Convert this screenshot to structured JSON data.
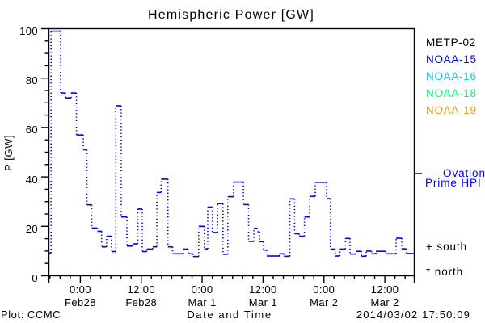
{
  "chart_data": {
    "type": "line",
    "subtype": "stepped-dotted",
    "title": "Hemispheric Power [GW]",
    "xlabel": "Date and Time",
    "ylabel": "P [GW]",
    "ylim": [
      0,
      100
    ],
    "yticks": [
      0,
      20,
      40,
      60,
      80,
      100
    ],
    "y_minor_step": 5,
    "x_hours_span": 72,
    "x_minor_step_h": 2,
    "xticks": [
      {
        "h": 6.2,
        "time": "0:00",
        "date": "Feb28"
      },
      {
        "h": 18.2,
        "time": "12:00",
        "date": "Feb28"
      },
      {
        "h": 30.2,
        "time": "0:00",
        "date": "Mar 1"
      },
      {
        "h": 42.2,
        "time": "12:00",
        "date": "Mar 1"
      },
      {
        "h": 54.2,
        "time": "0:00",
        "date": "Mar 2"
      },
      {
        "h": 66.2,
        "time": "12:00",
        "date": "Mar 2"
      }
    ],
    "series": [
      {
        "name": "Ovation Prime HPI",
        "color": "#0000ee",
        "steps_h_gw": [
          [
            0.0,
            9.2
          ],
          [
            0.43,
            99.0
          ],
          [
            2.31,
            74.0
          ],
          [
            3.27,
            72.0
          ],
          [
            4.38,
            74.0
          ],
          [
            5.42,
            57.0
          ],
          [
            6.79,
            51.0
          ],
          [
            7.49,
            28.7
          ],
          [
            8.44,
            19.3
          ],
          [
            9.56,
            18.0
          ],
          [
            10.4,
            11.7
          ],
          [
            11.37,
            16.0
          ],
          [
            12.34,
            9.8
          ],
          [
            13.19,
            68.8
          ],
          [
            14.24,
            23.8
          ],
          [
            15.37,
            12.0
          ],
          [
            16.49,
            12.9
          ],
          [
            17.52,
            27.0
          ],
          [
            18.4,
            9.8
          ],
          [
            19.29,
            10.8
          ],
          [
            20.44,
            11.7
          ],
          [
            21.27,
            33.7
          ],
          [
            22.11,
            39.1
          ],
          [
            23.45,
            11.7
          ],
          [
            24.37,
            8.9
          ],
          [
            26.51,
            10.8
          ],
          [
            27.48,
            8.9
          ],
          [
            28.39,
            7.8
          ],
          [
            29.52,
            20.0
          ],
          [
            30.62,
            10.9
          ],
          [
            31.3,
            27.8
          ],
          [
            32.21,
            17.5
          ],
          [
            33.24,
            29.2
          ],
          [
            34.3,
            8.7
          ],
          [
            35.25,
            32.0
          ],
          [
            36.4,
            37.9
          ],
          [
            38.33,
            28.8
          ],
          [
            39.35,
            13.9
          ],
          [
            40.38,
            19.2
          ],
          [
            41.1,
            17.8
          ],
          [
            41.5,
            13.8
          ],
          [
            42.29,
            10.4
          ],
          [
            42.93,
            8.0
          ],
          [
            45.45,
            8.9
          ],
          [
            46.31,
            7.9
          ],
          [
            47.47,
            31.1
          ],
          [
            48.41,
            17.0
          ],
          [
            49.32,
            16.0
          ],
          [
            50.35,
            23.8
          ],
          [
            51.39,
            32.1
          ],
          [
            52.49,
            37.8
          ],
          [
            54.73,
            31.2
          ],
          [
            55.47,
            10.8
          ],
          [
            56.41,
            8.0
          ],
          [
            57.33,
            10.8
          ],
          [
            58.43,
            15.1
          ],
          [
            59.34,
            8.8
          ],
          [
            60.5,
            9.9
          ],
          [
            61.6,
            7.9
          ],
          [
            62.52,
            10.0
          ],
          [
            63.56,
            8.9
          ],
          [
            64.44,
            9.9
          ],
          [
            66.35,
            8.9
          ],
          [
            68.42,
            15.2
          ],
          [
            69.54,
            10.9
          ],
          [
            70.43,
            9.0
          ]
        ]
      }
    ],
    "legend_position": "right"
  },
  "satellites": [
    {
      "label": "METP-02",
      "color": "#000000"
    },
    {
      "label": "NOAA-15",
      "color": "#0000ee"
    },
    {
      "label": "NOAA-16",
      "color": "#00ccff"
    },
    {
      "label": "NOAA-18",
      "color": "#00ff66"
    },
    {
      "label": "NOAA-19",
      "color": "#ff9900"
    }
  ],
  "annotations": {
    "series_label_line1": "— Ovation",
    "series_label_line2": "Prime HPI",
    "south_marker": "+ south",
    "north_marker": "* north"
  },
  "footer": {
    "left": "Plot: CCMC",
    "right": "2014/03/02 17:50:09"
  },
  "colors": {
    "axis": "#000000",
    "background": "#ffffff",
    "curve": "#0000ee"
  }
}
